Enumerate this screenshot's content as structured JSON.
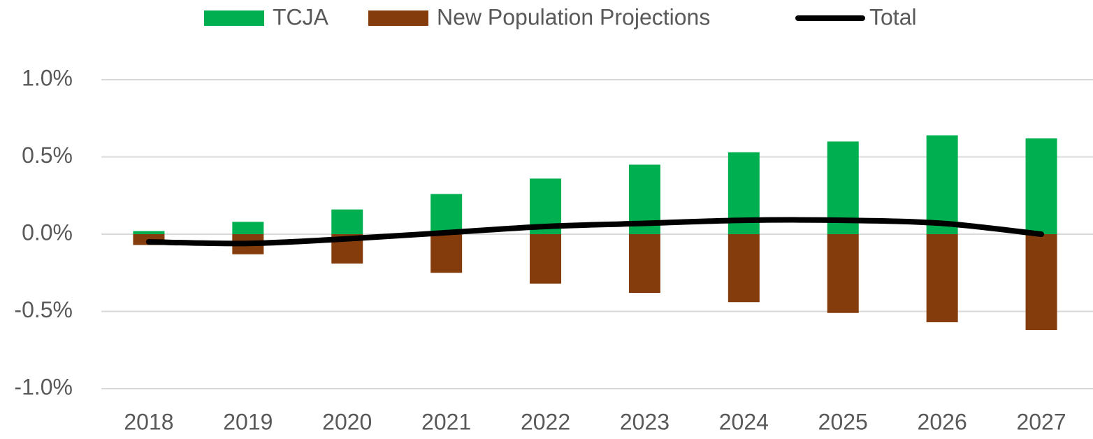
{
  "chart_data": {
    "type": "bar_line",
    "categories": [
      "2018",
      "2019",
      "2020",
      "2021",
      "2022",
      "2023",
      "2024",
      "2025",
      "2026",
      "2027"
    ],
    "series": [
      {
        "name": "TCJA",
        "type": "bar",
        "color": "#00b050",
        "values": [
          0.02,
          0.08,
          0.16,
          0.26,
          0.36,
          0.45,
          0.53,
          0.6,
          0.64,
          0.62
        ]
      },
      {
        "name": "New Population Projections",
        "type": "bar",
        "color": "#843c0c",
        "values": [
          -0.07,
          -0.13,
          -0.19,
          -0.25,
          -0.32,
          -0.38,
          -0.44,
          -0.51,
          -0.57,
          -0.62
        ]
      },
      {
        "name": "Total",
        "type": "line",
        "color": "#000000",
        "values": [
          -0.05,
          -0.06,
          -0.03,
          0.01,
          0.05,
          0.07,
          0.09,
          0.09,
          0.07,
          0
        ]
      }
    ],
    "ylim": [
      -1.0,
      1.0
    ],
    "yticks": [
      {
        "value": -1.0,
        "label": "-1.0%"
      },
      {
        "value": -0.5,
        "label": "-0.5%"
      },
      {
        "value": 0,
        "label": "0.0%"
      },
      {
        "value": 0.5,
        "label": "0.5%"
      },
      {
        "value": 1.0,
        "label": "1.0%"
      }
    ],
    "grid": true,
    "legend": "top"
  }
}
